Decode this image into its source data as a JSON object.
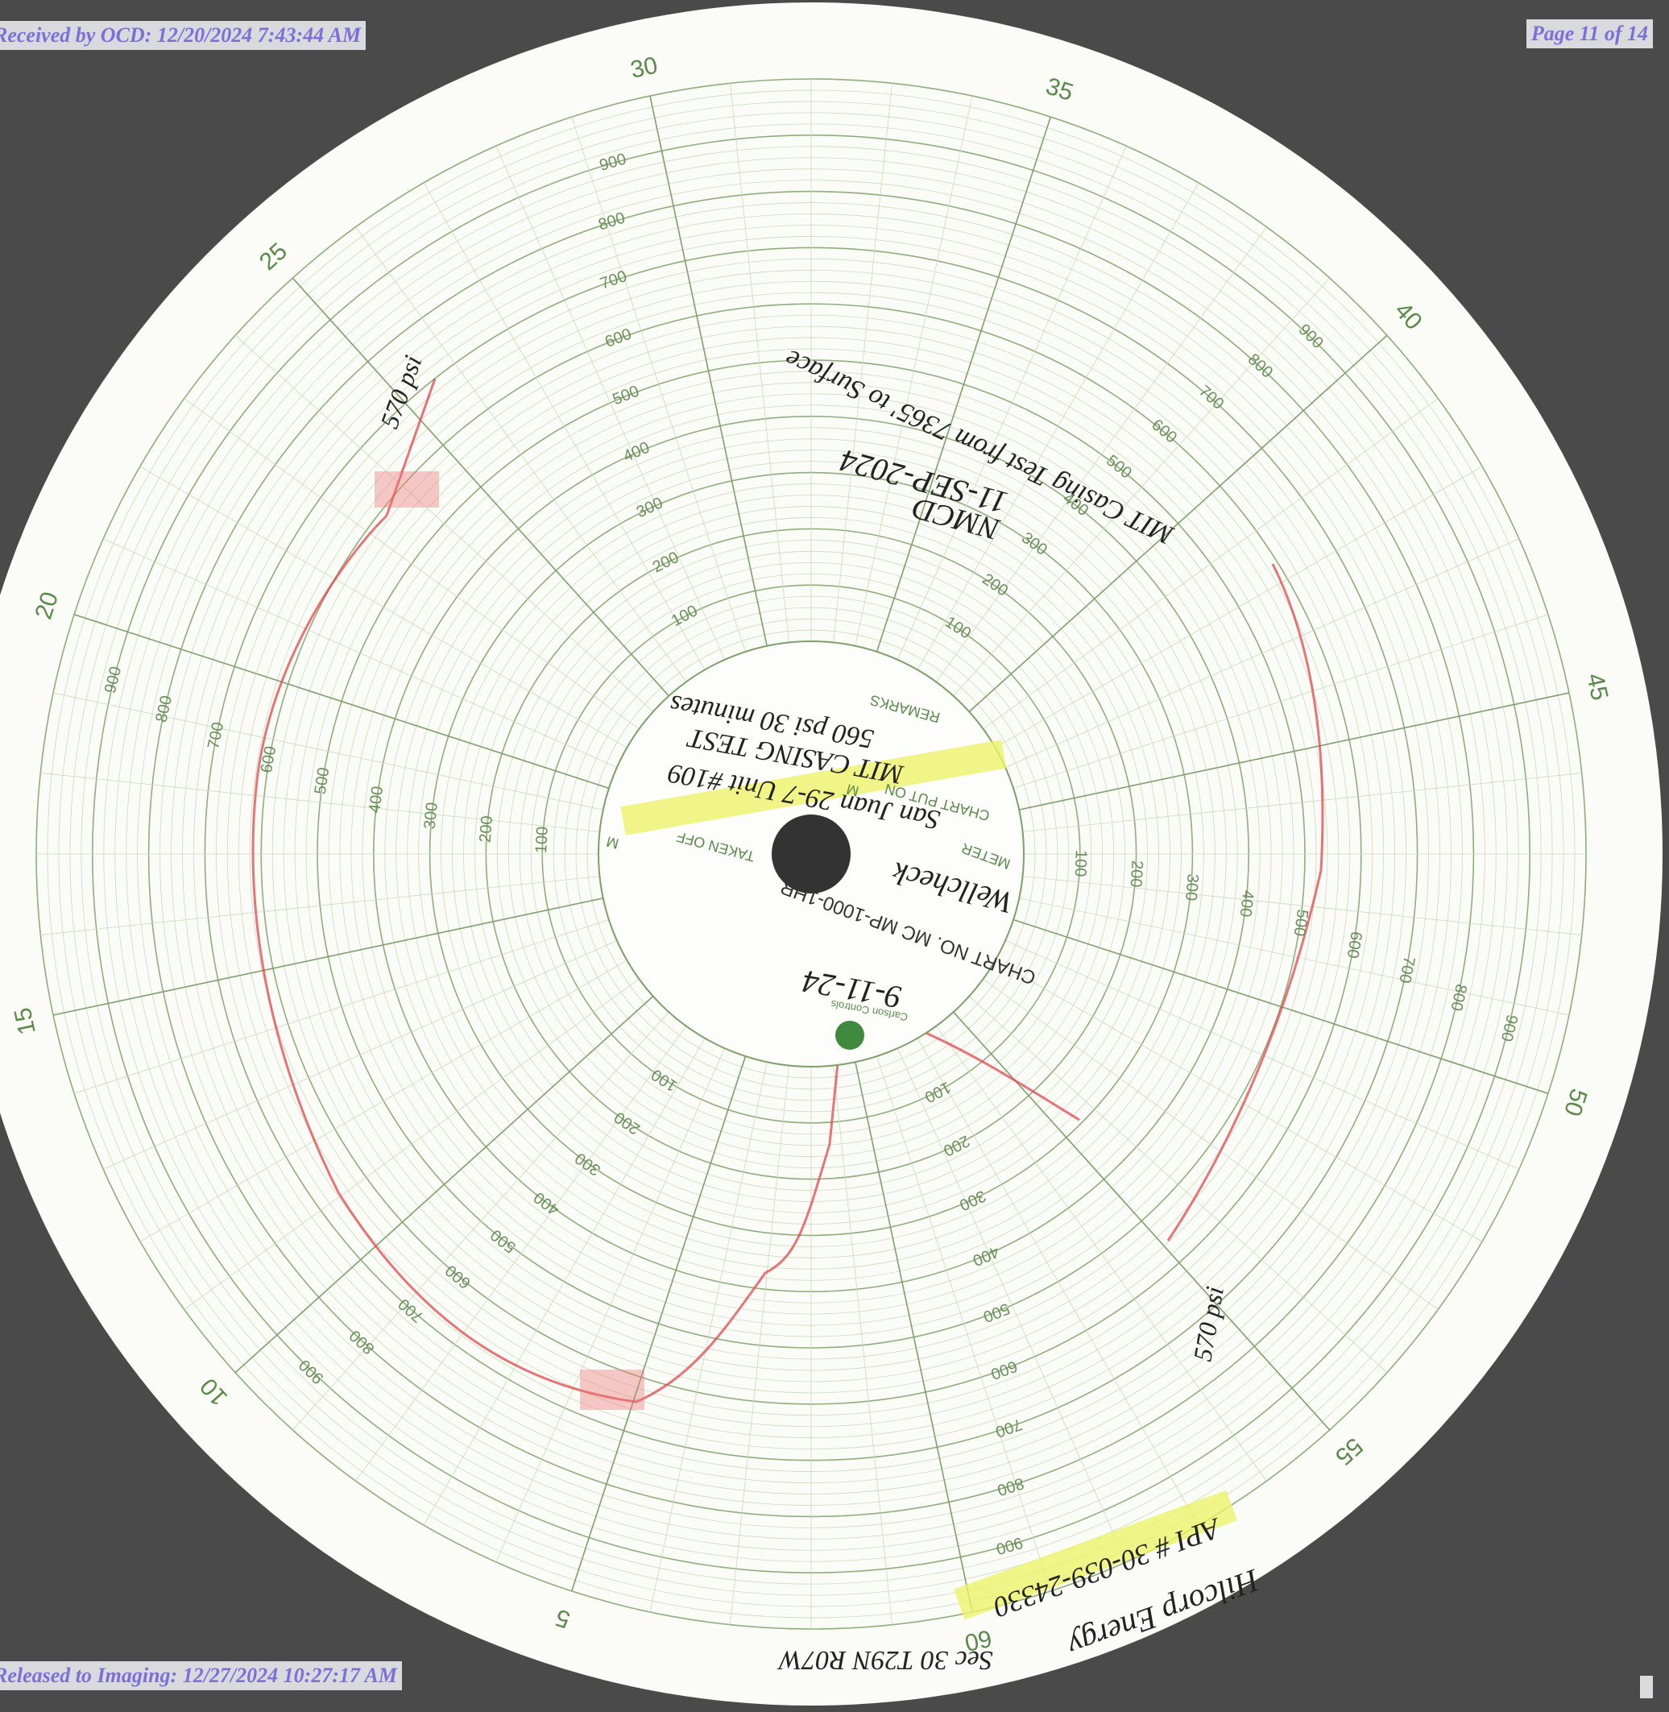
{
  "header": {
    "received": "Received by OCD: 12/20/2024 7:43:44 AM",
    "page": "Page 11 of 14"
  },
  "footer": {
    "released": "Released to Imaging: 12/27/2024 10:27:17 AM"
  },
  "chart": {
    "time_labels": [
      "5",
      "10",
      "15",
      "20",
      "25",
      "30",
      "35",
      "40",
      "45",
      "50",
      "55",
      "60"
    ],
    "pressure_labels": [
      "100",
      "200",
      "300",
      "400",
      "500",
      "600",
      "700",
      "800",
      "900"
    ],
    "center": {
      "remarks": "REMARKS",
      "chart_put_on": "CHART PUT ON",
      "put_on_m": "M",
      "taken_off": "TAKEN OFF",
      "taken_off_m": "M",
      "meter": "METER",
      "chart_no": "CHART NO. MC MP-1000-1HR",
      "maker": "Carlson Controls"
    },
    "handwriting": {
      "remarks_line1": "San Juan 29-7 Unit #109",
      "remarks_line2": "MIT CASING TEST",
      "remarks_line3": "560 psi 30 minutes",
      "meter": "Wellcheck",
      "date": "9-11-24",
      "test": "MIT Casing Test from 7365' to Surface",
      "test_date": "11-SEP-2024",
      "agency": "NMCD",
      "start_pressure": "570 psi",
      "end_pressure": "570 psi",
      "operator": "Hilcorp Energy",
      "api": "API # 30-039-24330",
      "location": "Sec 30 T29N R07W"
    }
  }
}
